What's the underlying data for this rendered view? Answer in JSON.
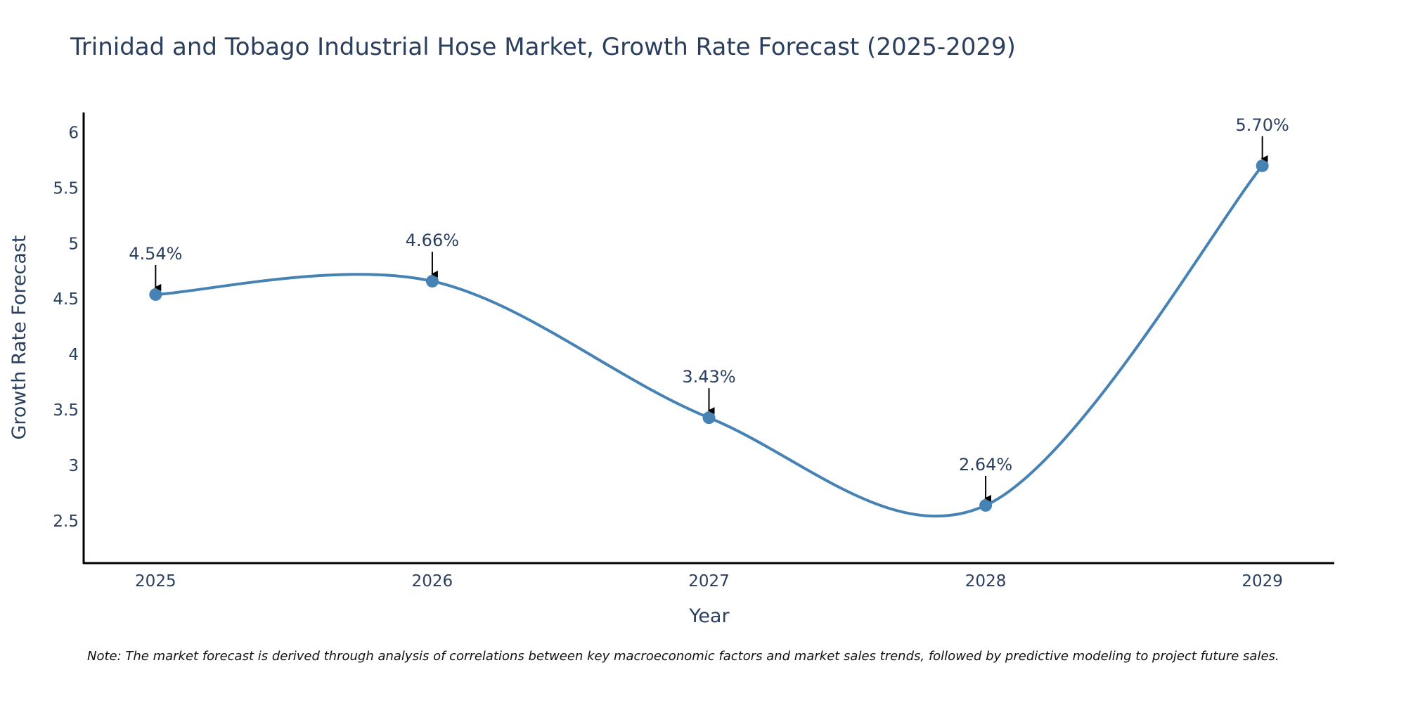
{
  "chart_data": {
    "type": "line",
    "title": "Trinidad and Tobago Industrial Hose Market, Growth Rate Forecast (2025-2029)",
    "xlabel": "Year",
    "ylabel": "Growth Rate Forecast",
    "categories": [
      "2025",
      "2026",
      "2027",
      "2028",
      "2029"
    ],
    "series": [
      {
        "name": "Growth Rate Forecast",
        "values": [
          4.54,
          4.66,
          3.43,
          2.64,
          5.7
        ],
        "labels": [
          "4.54%",
          "4.66%",
          "3.43%",
          "2.64%",
          "5.70%"
        ]
      }
    ],
    "xlim": [
      2024.74,
      2029.26
    ],
    "ylim": [
      2.12,
      6.18
    ],
    "yticks": [
      2.5,
      3,
      3.5,
      4,
      4.5,
      5,
      5.5,
      6
    ],
    "ytick_labels": [
      "2.5",
      "3",
      "3.5",
      "4",
      "4.5",
      "5",
      "5.5",
      "6"
    ],
    "grid": false,
    "legend": "none",
    "line_shape": "spline",
    "note": "Note: The market forecast is derived through analysis of correlations between key macroeconomic factors and market sales trends, followed by predictive modeling to project future sales.",
    "colors": {
      "line": "#4682b4",
      "marker": "#4682b4",
      "axis": "#000000",
      "arrow": "#000000",
      "text": "#2a3f5f"
    }
  }
}
